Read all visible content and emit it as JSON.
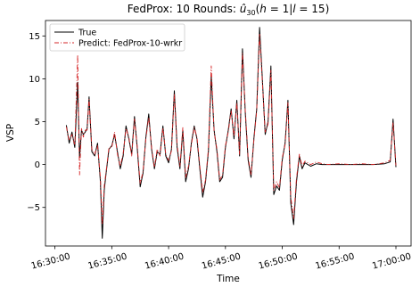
{
  "chart_data": {
    "type": "line",
    "title": "FedProx: 10 Rounds: û₃₀(h = 1|l = 15)",
    "xlabel": "Time",
    "ylabel": "VSP",
    "xlim": [
      "16:29:10",
      "17:01:20"
    ],
    "ylim": [
      -9.5,
      16.8
    ],
    "x_ticks": [
      "16:30:00",
      "16:35:00",
      "16:40:00",
      "16:45:00",
      "16:50:00",
      "16:55:00",
      "17:00:00"
    ],
    "y_ticks": [
      -5,
      0,
      5,
      10,
      15
    ],
    "grid": false,
    "legend": "top-left",
    "series": [
      {
        "name": "True",
        "color": "#000000",
        "style": "solid",
        "x": [
          "16:31:00",
          "16:31:15",
          "16:31:30",
          "16:31:45",
          "16:32:00",
          "16:32:10",
          "16:32:20",
          "16:32:30",
          "16:32:40",
          "16:32:50",
          "16:33:00",
          "16:33:15",
          "16:33:30",
          "16:33:45",
          "16:34:00",
          "16:34:10",
          "16:34:20",
          "16:34:30",
          "16:34:45",
          "16:35:00",
          "16:35:15",
          "16:35:30",
          "16:35:45",
          "16:36:00",
          "16:36:15",
          "16:36:30",
          "16:36:45",
          "16:37:00",
          "16:37:15",
          "16:37:30",
          "16:37:45",
          "16:38:00",
          "16:38:15",
          "16:38:30",
          "16:38:45",
          "16:39:00",
          "16:39:15",
          "16:39:30",
          "16:39:45",
          "16:40:00",
          "16:40:15",
          "16:40:30",
          "16:40:45",
          "16:41:00",
          "16:41:15",
          "16:41:30",
          "16:41:45",
          "16:42:00",
          "16:42:15",
          "16:42:30",
          "16:42:45",
          "16:43:00",
          "16:43:15",
          "16:43:30",
          "16:43:45",
          "16:44:00",
          "16:44:15",
          "16:44:30",
          "16:44:45",
          "16:45:00",
          "16:45:15",
          "16:45:30",
          "16:45:45",
          "16:46:00",
          "16:46:15",
          "16:46:30",
          "16:46:45",
          "16:47:00",
          "16:47:15",
          "16:47:30",
          "16:47:45",
          "16:48:00",
          "16:48:15",
          "16:48:30",
          "16:48:45",
          "16:49:00",
          "16:49:15",
          "16:49:30",
          "16:49:45",
          "16:50:00",
          "16:50:15",
          "16:50:30",
          "16:50:45",
          "16:51:00",
          "16:51:15",
          "16:51:30",
          "16:51:45",
          "16:52:00",
          "16:52:30",
          "16:53:00",
          "16:53:30",
          "16:54:00",
          "16:55:00",
          "16:56:00",
          "16:57:00",
          "16:58:00",
          "16:59:00",
          "16:59:30",
          "16:59:45",
          "17:00:00"
        ],
        "values": [
          4.6,
          2.5,
          3.8,
          2.0,
          9.6,
          0.8,
          4.0,
          3.5,
          3.8,
          4.2,
          7.9,
          1.5,
          1.0,
          2.5,
          -2.0,
          -8.6,
          -3.0,
          -1.0,
          1.8,
          2.2,
          3.5,
          1.5,
          -0.5,
          1.0,
          4.5,
          3.0,
          1.2,
          5.6,
          1.8,
          -2.6,
          -1.0,
          3.2,
          5.9,
          1.8,
          -0.5,
          1.5,
          1.2,
          4.5,
          1.0,
          0.2,
          1.8,
          8.6,
          2.0,
          -0.5,
          4.0,
          -2.0,
          -0.5,
          2.5,
          4.5,
          3.0,
          -0.5,
          -3.8,
          -2.0,
          1.5,
          10.3,
          4.0,
          1.5,
          -2.0,
          -1.5,
          2.0,
          4.0,
          6.5,
          3.0,
          7.5,
          1.0,
          13.5,
          6.0,
          0.5,
          -1.5,
          3.0,
          6.5,
          16.0,
          10.0,
          3.5,
          5.0,
          11.5,
          -3.5,
          -2.5,
          -3.0,
          0.5,
          2.5,
          7.5,
          -4.5,
          -7.0,
          -2.0,
          1.0,
          -0.5,
          0.2,
          -0.2,
          0.1,
          0.0,
          0.0,
          0.0,
          0.0,
          0.0,
          0.0,
          0.1,
          0.3,
          5.3,
          -0.3
        ]
      },
      {
        "name": "Predict: FedProx-10-wrkr",
        "color": "#d62728",
        "style": "dashdot",
        "x": [
          "16:31:00",
          "16:31:15",
          "16:31:30",
          "16:31:45",
          "16:32:00",
          "16:32:10",
          "16:32:20",
          "16:32:30",
          "16:32:40",
          "16:32:50",
          "16:33:00",
          "16:33:15",
          "16:33:30",
          "16:33:45",
          "16:34:00",
          "16:34:10",
          "16:34:20",
          "16:34:30",
          "16:34:45",
          "16:35:00",
          "16:35:15",
          "16:35:30",
          "16:35:45",
          "16:36:00",
          "16:36:15",
          "16:36:30",
          "16:36:45",
          "16:37:00",
          "16:37:15",
          "16:37:30",
          "16:37:45",
          "16:38:00",
          "16:38:15",
          "16:38:30",
          "16:38:45",
          "16:39:00",
          "16:39:15",
          "16:39:30",
          "16:39:45",
          "16:40:00",
          "16:40:15",
          "16:40:30",
          "16:40:45",
          "16:41:00",
          "16:41:15",
          "16:41:30",
          "16:41:45",
          "16:42:00",
          "16:42:15",
          "16:42:30",
          "16:42:45",
          "16:43:00",
          "16:43:15",
          "16:43:30",
          "16:43:45",
          "16:44:00",
          "16:44:15",
          "16:44:30",
          "16:44:45",
          "16:45:00",
          "16:45:15",
          "16:45:30",
          "16:45:45",
          "16:46:00",
          "16:46:15",
          "16:46:30",
          "16:46:45",
          "16:47:00",
          "16:47:15",
          "16:47:30",
          "16:47:45",
          "16:48:00",
          "16:48:15",
          "16:48:30",
          "16:48:45",
          "16:49:00",
          "16:49:15",
          "16:49:30",
          "16:49:45",
          "16:50:00",
          "16:50:15",
          "16:50:30",
          "16:50:45",
          "16:51:00",
          "16:51:15",
          "16:51:30",
          "16:51:45",
          "16:52:00",
          "16:52:30",
          "16:53:00",
          "16:53:30",
          "16:54:00",
          "16:55:00",
          "16:56:00",
          "16:57:00",
          "16:58:00",
          "16:59:00",
          "16:59:30",
          "16:59:45",
          "17:00:00"
        ],
        "values": [
          4.4,
          2.8,
          3.5,
          2.3,
          12.8,
          -1.2,
          4.2,
          3.2,
          4.0,
          4.0,
          7.6,
          1.8,
          1.2,
          2.2,
          -1.5,
          -7.0,
          -2.5,
          -0.8,
          2.0,
          2.0,
          3.8,
          1.2,
          -0.2,
          1.3,
          4.2,
          3.2,
          1.0,
          5.3,
          2.0,
          -2.2,
          -0.8,
          3.0,
          5.5,
          2.0,
          -0.3,
          1.8,
          1.0,
          4.3,
          1.2,
          0.5,
          1.6,
          8.3,
          2.3,
          -0.2,
          4.3,
          -1.5,
          -0.2,
          2.3,
          4.3,
          3.2,
          -0.2,
          -3.2,
          -1.8,
          1.8,
          11.5,
          3.8,
          1.8,
          -1.8,
          -1.2,
          2.2,
          3.8,
          6.3,
          3.3,
          7.2,
          1.2,
          13.0,
          6.3,
          0.8,
          -1.2,
          2.8,
          6.3,
          15.2,
          9.6,
          3.8,
          4.7,
          11.0,
          -3.0,
          -2.0,
          -2.7,
          0.8,
          2.3,
          7.2,
          -3.8,
          -6.3,
          -1.6,
          1.2,
          -0.2,
          0.4,
          0.0,
          0.3,
          0.1,
          0.0,
          0.1,
          0.0,
          0.1,
          0.0,
          0.2,
          0.5,
          4.9,
          -0.1
        ]
      }
    ]
  }
}
